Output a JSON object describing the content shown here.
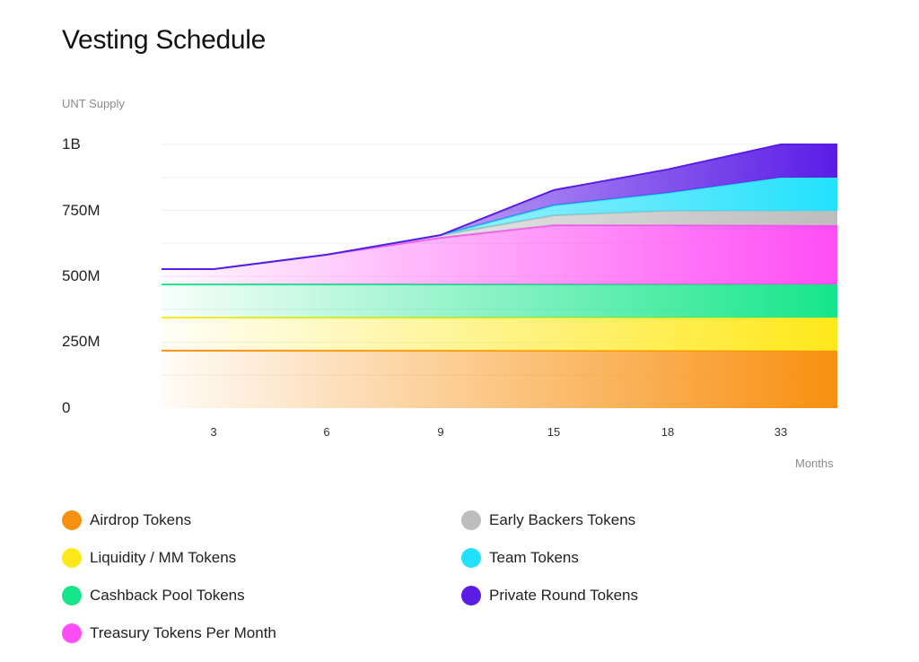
{
  "chart_data": {
    "type": "area",
    "stacked": true,
    "title": "Vesting Schedule",
    "ylabel": "UNT Supply",
    "xlabel": "Months",
    "categories": [
      "3",
      "6",
      "9",
      "15",
      "18",
      "33"
    ],
    "yticks": [
      "0",
      "250M",
      "500M",
      "750M",
      "1B"
    ],
    "ytick_values": [
      0,
      250,
      500,
      750,
      1000
    ],
    "ylim": [
      0,
      1000
    ],
    "units": "millions",
    "grid": true,
    "legend_position": "bottom",
    "series": [
      {
        "name": "Airdrop Tokens",
        "color": "#F8900F",
        "values": [
          218,
          218,
          218,
          218,
          218,
          218
        ]
      },
      {
        "name": "Liquidity / MM Tokens",
        "color": "#FFE81A",
        "values": [
          125,
          125,
          125,
          125,
          125,
          125
        ]
      },
      {
        "name": "Cashback Pool Tokens",
        "color": "#15E68A",
        "values": [
          126,
          126,
          126,
          126,
          126,
          126
        ]
      },
      {
        "name": "Treasury Tokens Per Month",
        "color": "#FF4DF5",
        "values": [
          58,
          113,
          177,
          225,
          225,
          225
        ]
      },
      {
        "name": "Early Backers Tokens",
        "color": "#BDBDBD",
        "values": [
          0,
          0,
          10,
          37,
          54,
          54
        ]
      },
      {
        "name": "Team Tokens",
        "color": "#22E1FC",
        "values": [
          0,
          0,
          0,
          38,
          68,
          126
        ]
      },
      {
        "name": "Private Round Tokens",
        "color": "#5B1CE6",
        "values": [
          0,
          0,
          0,
          58,
          89,
          126
        ]
      }
    ]
  }
}
